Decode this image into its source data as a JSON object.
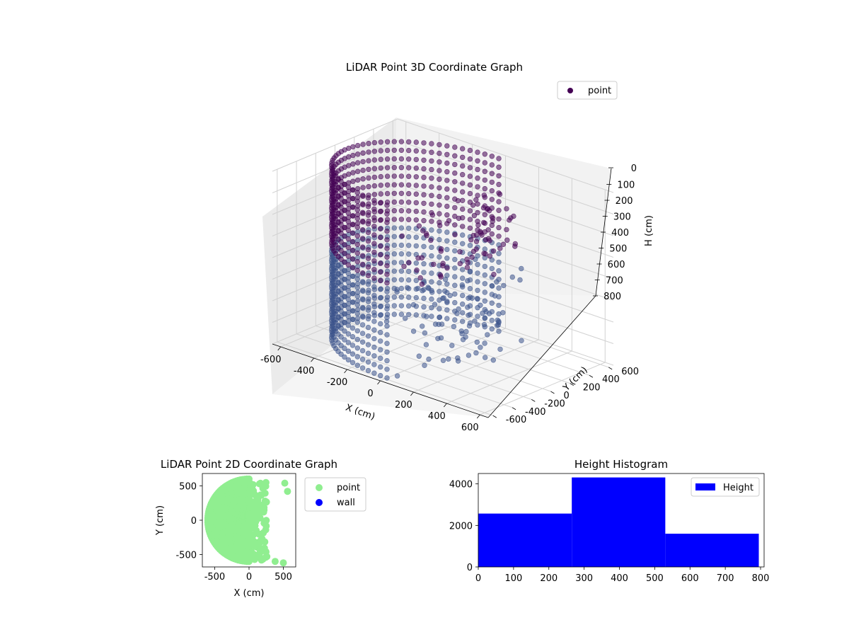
{
  "chart_data": [
    {
      "type": "scatter",
      "title": "LiDAR Point 3D Coordinate Graph",
      "xlabel": "X (cm)",
      "ylabel": "Y (cm)",
      "zlabel": "H (cm)",
      "xlim": [
        -650,
        650
      ],
      "ylim": [
        -650,
        650
      ],
      "zlim": [
        800,
        0
      ],
      "x_ticks": [
        -600,
        -400,
        -200,
        0,
        200,
        400,
        600
      ],
      "y_ticks": [
        -600,
        -400,
        -200,
        0,
        200,
        400,
        600
      ],
      "z_ticks": [
        0,
        100,
        200,
        300,
        400,
        500,
        600,
        700,
        800
      ],
      "legend": {
        "placement": "upper-right",
        "entries": [
          {
            "label": "point",
            "color": "#440154"
          }
        ]
      },
      "point_color_range": [
        "#440154",
        "#3b528b"
      ],
      "series": [
        {
          "name": "point",
          "description_points": "cylindrical wall of radius ~600 cm at x<=0, scattered points at x>0"
        }
      ]
    },
    {
      "type": "scatter",
      "title": "LiDAR Point 2D Coordinate Graph",
      "xlabel": "X (cm)",
      "ylabel": "Y (cm)",
      "xlim": [
        -680,
        680
      ],
      "ylim": [
        -680,
        680
      ],
      "x_ticks": [
        -500,
        0,
        500
      ],
      "y_ticks": [
        -500,
        0,
        500
      ],
      "legend": {
        "placement": "outside-right",
        "entries": [
          {
            "label": "point",
            "color": "#90ee90"
          },
          {
            "label": "wall",
            "color": "#0000ff"
          }
        ]
      }
    },
    {
      "type": "bar",
      "title": "Height Histogram",
      "xlabel": "",
      "ylabel": "",
      "xlim": [
        0,
        810
      ],
      "ylim": [
        0,
        4500
      ],
      "x_ticks": [
        0,
        100,
        200,
        300,
        400,
        500,
        600,
        700,
        800
      ],
      "y_ticks": [
        0,
        2000,
        4000
      ],
      "bins": [
        {
          "from": 0,
          "to": 265,
          "count": 2570
        },
        {
          "from": 265,
          "to": 530,
          "count": 4310
        },
        {
          "from": 530,
          "to": 795,
          "count": 1600
        }
      ],
      "bar_color": "#0000ff",
      "legend": {
        "placement": "upper-right",
        "entries": [
          {
            "label": "Height",
            "color": "#0000ff"
          }
        ]
      }
    }
  ]
}
